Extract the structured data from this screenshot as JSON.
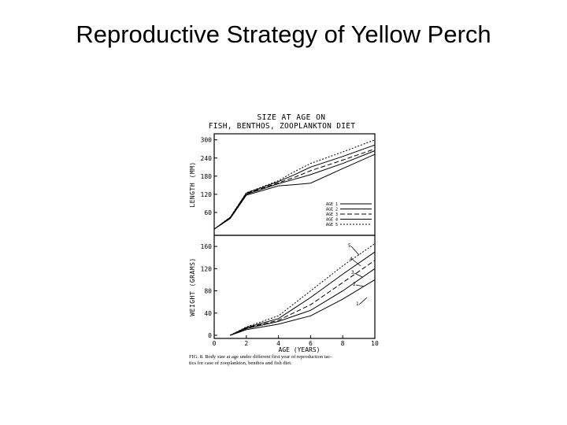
{
  "slide": {
    "title": "Reproductive Strategy of Yellow Perch"
  },
  "figure": {
    "title_line1": "SIZE AT AGE ON",
    "title_line2": "FISH, BENTHOS, ZOOPLANKTON DIET",
    "caption_line1": "FIG. 8. Body size at age under different first year of reproduction tac-",
    "caption_line2": "tics for case of zooplankton, benthos and fish diet."
  },
  "chart_data": [
    {
      "type": "line",
      "ylabel": "LENGTH (MM)",
      "xlabel": "",
      "xlim": [
        0,
        10
      ],
      "ylim": [
        0,
        320
      ],
      "yticks": [
        "300",
        "240",
        "180",
        "120",
        "60"
      ],
      "ytick_values": [
        300,
        240,
        180,
        120,
        60
      ],
      "legend": [
        "AGE 1",
        "AGE 2",
        "AGE 3",
        "AGE 4",
        "AGE 5"
      ],
      "legend_position": "right",
      "x": [
        0,
        1,
        2,
        4,
        5,
        6,
        8,
        10
      ],
      "series": [
        {
          "name": "AGE 1",
          "dash": "",
          "values": [
            5,
            40,
            117,
            148,
            152,
            157,
            205,
            252
          ]
        },
        {
          "name": "AGE 2",
          "dash": "",
          "values": [
            5,
            42,
            120,
            155,
            170,
            185,
            222,
            264
          ]
        },
        {
          "name": "AGE 3",
          "dash": "6,3",
          "values": [
            5,
            43,
            122,
            158,
            176,
            198,
            233,
            270
          ]
        },
        {
          "name": "AGE 4",
          "dash": "",
          "values": [
            5,
            44,
            124,
            162,
            185,
            210,
            245,
            283
          ]
        },
        {
          "name": "AGE 5",
          "dash": "2,2",
          "values": [
            5,
            45,
            125,
            165,
            195,
            222,
            260,
            300
          ]
        }
      ]
    },
    {
      "type": "line",
      "ylabel": "WEIGHT (GRAMS)",
      "xlabel": "AGE (YEARS)",
      "xlim": [
        0,
        10
      ],
      "ylim": [
        0,
        180
      ],
      "yticks": [
        "160",
        "120",
        "80",
        "40",
        "0"
      ],
      "ytick_values": [
        160,
        120,
        80,
        40,
        0
      ],
      "xticks": [
        "0",
        "2",
        "4",
        "6",
        "8",
        "10"
      ],
      "xtick_values": [
        0,
        2,
        4,
        6,
        8,
        10
      ],
      "annotations": [
        "5",
        "4",
        "3",
        "2",
        "1"
      ],
      "x": [
        1,
        2,
        4,
        6,
        8,
        10
      ],
      "series": [
        {
          "name": "1",
          "dash": "",
          "values": [
            0,
            10,
            20,
            35,
            65,
            100
          ]
        },
        {
          "name": "2",
          "dash": "",
          "values": [
            0,
            12,
            25,
            45,
            80,
            120
          ]
        },
        {
          "name": "3",
          "dash": "6,3",
          "values": [
            0,
            13,
            27,
            55,
            95,
            135
          ]
        },
        {
          "name": "4",
          "dash": "",
          "values": [
            0,
            14,
            30,
            68,
            110,
            150
          ]
        },
        {
          "name": "5",
          "dash": "2,2",
          "values": [
            0,
            15,
            35,
            80,
            125,
            165
          ]
        }
      ]
    }
  ]
}
